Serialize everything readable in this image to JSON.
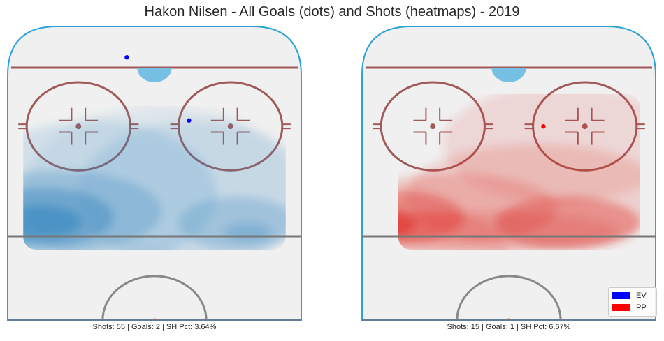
{
  "chart_data": {
    "type": "heatmap",
    "title": "Hakon Nilsen - All Goals (dots) and Shots (heatmaps) - 2019",
    "panels": [
      {
        "name": "EV",
        "caption": "Shots: 55 | Goals: 2 | SH Pct: 3.64%",
        "shots": 55,
        "goals_count": 2,
        "sh_pct": 3.64,
        "heat_color": "#3182bd",
        "goal_color": "#0000ff",
        "goals": [
          [
            -8,
            89.5
          ],
          [
            10,
            68
          ]
        ]
      },
      {
        "name": "PP",
        "caption": "Shots: 15 | Goals: 1 | SH Pct: 6.67%",
        "shots": 15,
        "goals_count": 1,
        "sh_pct": 6.67,
        "heat_color": "#de2d26",
        "goal_color": "#ff0000",
        "goals": [
          [
            10,
            66
          ]
        ]
      }
    ],
    "legend": {
      "position": "bottom-right",
      "items": [
        {
          "label": "EV",
          "color": "#0000ff"
        },
        {
          "label": "PP",
          "color": "#ff0000"
        }
      ]
    },
    "rink": {
      "ice_color": "#f0f0f0",
      "boards_color": "#2aa3d6",
      "goal_line_color": "#a05a5a",
      "crease_color": "#76c1e3",
      "faceoff_color": "#a05a5a",
      "blue_line_color": "#777777",
      "center_circle_color": "#888888"
    }
  }
}
